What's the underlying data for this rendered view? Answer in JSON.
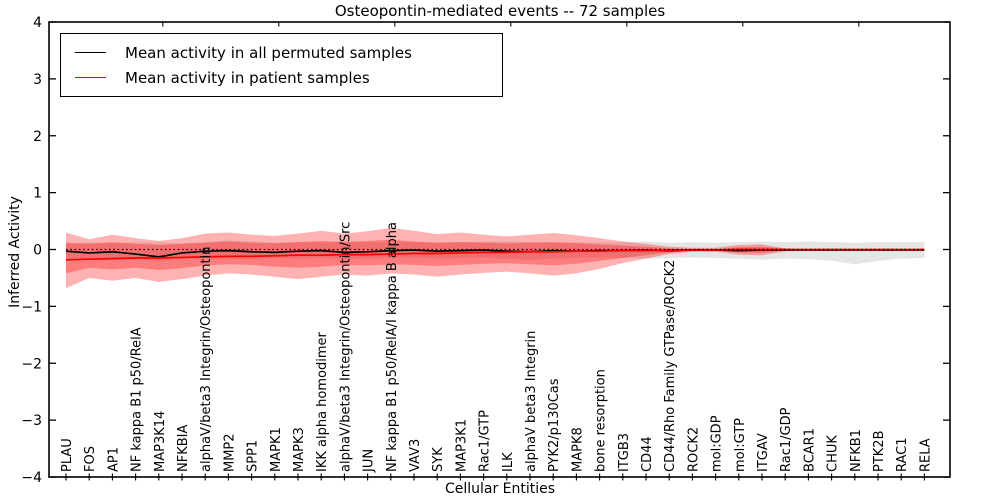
{
  "chart_data": {
    "type": "line",
    "title": "Osteopontin-mediated events -- 72 samples",
    "xlabel": "Cellular Entities",
    "ylabel": "Inferred Activity",
    "axes": {
      "ylim": [
        -4,
        4
      ],
      "yticks": [
        4,
        3,
        2,
        1,
        0,
        -1,
        -2,
        -3,
        -4
      ],
      "ytick_labels": [
        "4",
        "3",
        "2",
        "1",
        "0",
        "−1",
        "−2",
        "−3",
        "−4"
      ],
      "grid": false,
      "reference_line_y": 0,
      "reference_line_style": "dotted"
    },
    "categories": [
      "PLAU",
      "FOS",
      "AP1",
      "NF kappa B1 p50/RelA",
      "MAP3K14",
      "NFKBIA",
      "alphaV/beta3 Integrin/Osteopontin",
      "MMP2",
      "SPP1",
      "MAPK1",
      "MAPK3",
      "IKK alpha homodimer",
      "alphaV/beta3 Integrin/Osteopontin/Src",
      "JUN",
      "NF kappa B1 p50/RelA/I kappa B alpha",
      "VAV3",
      "SYK",
      "MAP3K1",
      "Rac1/GTP",
      "ILK",
      "alphaV beta3 Integrin",
      "PYK2/p130Cas",
      "MAPK8",
      "bone resorption",
      "ITGB3",
      "CD44",
      "CD44/Rho Family GTPase/ROCK2",
      "ROCK2",
      "mol:GDP",
      "mol:GTP",
      "ITGAV",
      "Rac1/GDP",
      "BCAR1",
      "CHUK",
      "NFKB1",
      "PTK2B",
      "RAC1",
      "RELA"
    ],
    "series": [
      {
        "name": "Mean activity in all permuted samples",
        "color": "#000000",
        "values": [
          -0.03,
          -0.06,
          -0.04,
          -0.08,
          -0.13,
          -0.06,
          -0.03,
          -0.02,
          -0.04,
          -0.05,
          -0.03,
          -0.02,
          -0.05,
          -0.04,
          -0.02,
          -0.01,
          -0.03,
          -0.02,
          -0.01,
          -0.03,
          -0.04,
          -0.02,
          -0.03,
          -0.02,
          -0.02,
          -0.01,
          -0.02,
          -0.01,
          -0.01,
          -0.02,
          -0.01,
          -0.01,
          -0.01,
          -0.01,
          -0.01,
          -0.01,
          -0.01,
          -0.01
        ]
      },
      {
        "name": "Mean activity in patient samples",
        "color": "#ff0000",
        "values": [
          -0.18,
          -0.17,
          -0.16,
          -0.15,
          -0.15,
          -0.14,
          -0.13,
          -0.12,
          -0.12,
          -0.11,
          -0.1,
          -0.1,
          -0.09,
          -0.09,
          -0.08,
          -0.07,
          -0.07,
          -0.06,
          -0.05,
          -0.05,
          -0.04,
          -0.04,
          -0.03,
          -0.03,
          -0.02,
          -0.02,
          -0.01,
          -0.01,
          -0.01,
          0,
          0,
          0,
          0,
          0,
          0,
          0,
          0,
          0
        ]
      }
    ],
    "bands": [
      {
        "name": "permuted-samples-range",
        "color": "#000000",
        "opacity": 0.1,
        "upper": [
          0.1,
          0.12,
          0.11,
          0.13,
          0.12,
          0.11,
          0.13,
          0.16,
          0.15,
          0.12,
          0.13,
          0.12,
          0.14,
          0.13,
          0.12,
          0.13,
          0.12,
          0.13,
          0.14,
          0.15,
          0.13,
          0.12,
          0.13,
          0.12,
          0.13,
          0.14,
          0.12,
          0.13,
          0.12,
          0.13,
          0.14,
          0.13,
          0.14,
          0.13,
          0.12,
          0.13,
          0.13,
          0.13
        ],
        "lower": [
          -0.14,
          -0.16,
          -0.15,
          -0.17,
          -0.2,
          -0.16,
          -0.15,
          -0.16,
          -0.17,
          -0.15,
          -0.16,
          -0.15,
          -0.17,
          -0.16,
          -0.15,
          -0.14,
          -0.16,
          -0.15,
          -0.14,
          -0.16,
          -0.18,
          -0.16,
          -0.15,
          -0.14,
          -0.15,
          -0.16,
          -0.15,
          -0.14,
          -0.15,
          -0.16,
          -0.18,
          -0.16,
          -0.17,
          -0.2,
          -0.26,
          -0.2,
          -0.16,
          -0.15
        ]
      },
      {
        "name": "patient-samples-outer-range",
        "color": "#ff0000",
        "opacity": 0.3,
        "upper": [
          0.3,
          0.18,
          0.26,
          0.2,
          0.15,
          0.2,
          0.28,
          0.3,
          0.26,
          0.24,
          0.28,
          0.33,
          0.28,
          0.32,
          0.38,
          0.33,
          0.27,
          0.3,
          0.26,
          0.23,
          0.26,
          0.29,
          0.25,
          0.2,
          0.14,
          0.1,
          0.05,
          0.03,
          0.03,
          0.08,
          0.09,
          0.02,
          0,
          0,
          0,
          0,
          0,
          0
        ],
        "lower": [
          -0.68,
          -0.5,
          -0.55,
          -0.5,
          -0.57,
          -0.52,
          -0.46,
          -0.42,
          -0.44,
          -0.48,
          -0.52,
          -0.48,
          -0.44,
          -0.46,
          -0.42,
          -0.44,
          -0.48,
          -0.44,
          -0.41,
          -0.39,
          -0.42,
          -0.46,
          -0.42,
          -0.34,
          -0.24,
          -0.16,
          -0.08,
          -0.04,
          -0.04,
          -0.09,
          -0.1,
          -0.03,
          0,
          0,
          0,
          0,
          0,
          0
        ]
      },
      {
        "name": "patient-samples-inner-range",
        "color": "#ff0000",
        "opacity": 0.3,
        "upper": [
          0.12,
          0.1,
          0.13,
          0.1,
          0.08,
          0.1,
          0.12,
          0.14,
          0.12,
          0.11,
          0.13,
          0.15,
          0.13,
          0.15,
          0.17,
          0.14,
          0.12,
          0.13,
          0.12,
          0.11,
          0.12,
          0.13,
          0.11,
          0.09,
          0.07,
          0.05,
          0.02,
          0.01,
          0.01,
          0.04,
          0.05,
          0.01,
          0,
          0,
          0,
          0,
          0,
          0
        ],
        "lower": [
          -0.42,
          -0.32,
          -0.35,
          -0.32,
          -0.36,
          -0.33,
          -0.28,
          -0.26,
          -0.27,
          -0.3,
          -0.32,
          -0.3,
          -0.27,
          -0.28,
          -0.26,
          -0.27,
          -0.29,
          -0.27,
          -0.25,
          -0.24,
          -0.26,
          -0.28,
          -0.25,
          -0.2,
          -0.15,
          -0.1,
          -0.05,
          -0.02,
          -0.02,
          -0.05,
          -0.06,
          -0.02,
          0,
          0,
          0,
          0,
          0,
          0
        ]
      }
    ],
    "legend": {
      "position": "upper left",
      "entries": [
        {
          "label": "Mean activity in all permuted samples",
          "color": "#000000"
        },
        {
          "label": "Mean activity in patient samples",
          "color": "#ff0000"
        }
      ]
    }
  }
}
